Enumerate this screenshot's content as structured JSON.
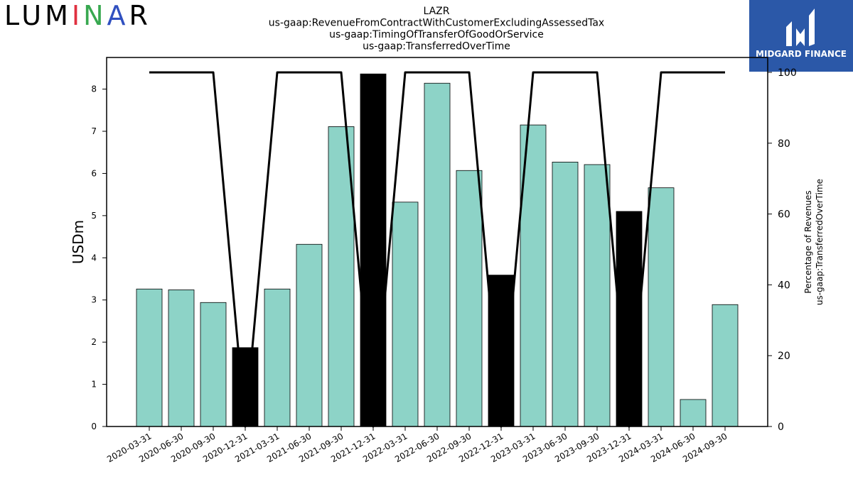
{
  "branding": {
    "left_logo": "LUMINAR",
    "right_logo": "MIDGARD FINANCE",
    "right_logo_bg": "#2b58a8"
  },
  "chart_data": {
    "type": "bar",
    "title_lines": [
      "LAZR",
      "us-gaap:RevenueFromContractWithCustomerExcludingAssessedTax",
      "us-gaap:TimingOfTransferOfGoodOrService",
      "us-gaap:TransferredOverTime"
    ],
    "ylabel": "USDm",
    "y2label_lines": [
      "Percentage of Revenues",
      "us-gaap:TransferredOverTime"
    ],
    "ylim": [
      0,
      8.75
    ],
    "y2lim": [
      0,
      104.2
    ],
    "yticks": [
      0,
      1,
      2,
      3,
      4,
      5,
      6,
      7,
      8
    ],
    "y2ticks": [
      0,
      20,
      40,
      60,
      80,
      100
    ],
    "categories": [
      "2020-03-31",
      "2020-06-30",
      "2020-09-30",
      "2020-12-31",
      "2021-03-31",
      "2021-06-30",
      "2021-09-30",
      "2021-12-31",
      "2022-03-31",
      "2022-06-30",
      "2022-09-30",
      "2022-12-31",
      "2023-03-31",
      "2023-06-30",
      "2023-09-30",
      "2023-12-31",
      "2024-03-31",
      "2024-06-30",
      "2024-09-30"
    ],
    "series": [
      {
        "values": [
          3.26,
          3.24,
          2.94,
          1.87,
          3.26,
          4.32,
          7.11,
          8.36,
          5.32,
          8.14,
          6.07,
          3.59,
          7.15,
          6.27,
          6.21,
          5.1,
          5.66,
          0.64,
          2.89
        ],
        "axis": "left"
      },
      {
        "values": [
          100,
          100,
          100,
          0,
          100,
          100,
          100,
          0,
          100,
          100,
          100,
          0,
          100,
          100,
          100,
          0,
          100,
          100,
          100
        ],
        "axis": "right",
        "type": "line"
      }
    ],
    "bar_color": "#8dd3c7",
    "highlight_color": "#000000",
    "line_color": "#000000",
    "grid": false
  }
}
